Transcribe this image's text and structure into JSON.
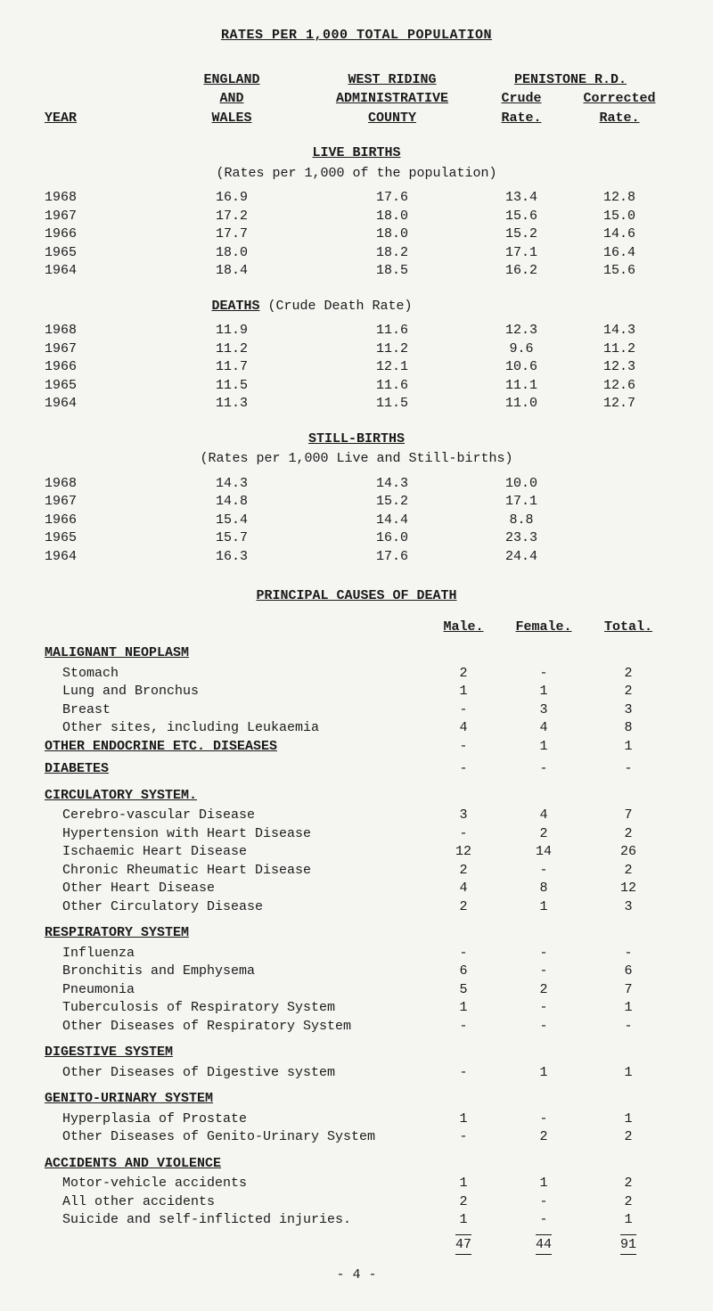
{
  "title": "RATES PER 1,000 TOTAL POPULATION",
  "headers": {
    "year": "YEAR",
    "england": "ENGLAND",
    "and": "AND",
    "wales": "WALES",
    "west": "WEST RIDING",
    "admin": "ADMINISTRATIVE",
    "county": "COUNTY",
    "penistone": "PENISTONE R.D.",
    "crude": "Crude",
    "corrected": "Corrected",
    "rate1": "Rate.",
    "rate2": "Rate."
  },
  "live_births": {
    "title": "LIVE BIRTHS",
    "subtitle": "(Rates per 1,000 of the population)",
    "rows": [
      {
        "y": "1968",
        "a": "16.9",
        "b": "17.6",
        "c": "13.4",
        "d": "12.8"
      },
      {
        "y": "1967",
        "a": "17.2",
        "b": "18.0",
        "c": "15.6",
        "d": "15.0"
      },
      {
        "y": "1966",
        "a": "17.7",
        "b": "18.0",
        "c": "15.2",
        "d": "14.6"
      },
      {
        "y": "1965",
        "a": "18.0",
        "b": "18.2",
        "c": "17.1",
        "d": "16.4"
      },
      {
        "y": "1964",
        "a": "18.4",
        "b": "18.5",
        "c": "16.2",
        "d": "15.6"
      }
    ]
  },
  "deaths": {
    "title_u": "DEATHS",
    "title_after": " (Crude Death Rate)",
    "rows": [
      {
        "y": "1968",
        "a": "11.9",
        "b": "11.6",
        "c": "12.3",
        "d": "14.3"
      },
      {
        "y": "1967",
        "a": "11.2",
        "b": "11.2",
        "c": "9.6",
        "d": "11.2"
      },
      {
        "y": "1966",
        "a": "11.7",
        "b": "12.1",
        "c": "10.6",
        "d": "12.3"
      },
      {
        "y": "1965",
        "a": "11.5",
        "b": "11.6",
        "c": "11.1",
        "d": "12.6"
      },
      {
        "y": "1964",
        "a": "11.3",
        "b": "11.5",
        "c": "11.0",
        "d": "12.7"
      }
    ]
  },
  "stillbirths": {
    "title": "STILL-BIRTHS",
    "subtitle": "(Rates per 1,000 Live and Still-births)",
    "rows": [
      {
        "y": "1968",
        "a": "14.3",
        "b": "14.3",
        "c": "10.0",
        "d": ""
      },
      {
        "y": "1967",
        "a": "14.8",
        "b": "15.2",
        "c": "17.1",
        "d": ""
      },
      {
        "y": "1966",
        "a": "15.4",
        "b": "14.4",
        "c": "8.8",
        "d": ""
      },
      {
        "y": "1965",
        "a": "15.7",
        "b": "16.0",
        "c": "23.3",
        "d": ""
      },
      {
        "y": "1964",
        "a": "16.3",
        "b": "17.6",
        "c": "24.4",
        "d": ""
      }
    ]
  },
  "causes": {
    "title": "PRINCIPAL CAUSES OF DEATH",
    "cols": {
      "male": "Male.",
      "female": "Female.",
      "total": "Total."
    },
    "malignant": {
      "label": "MALIGNANT NEOPLASM",
      "rows": [
        {
          "l": "Stomach",
          "m": "2",
          "f": "-",
          "t": "2"
        },
        {
          "l": "Lung and Bronchus",
          "m": "1",
          "f": "1",
          "t": "2"
        },
        {
          "l": "Breast",
          "m": "-",
          "f": "3",
          "t": "3"
        },
        {
          "l": "Other sites, including Leukaemia",
          "m": "4",
          "f": "4",
          "t": "8"
        }
      ]
    },
    "endocrine": {
      "label": "OTHER ENDOCRINE ETC. DISEASES",
      "m": "-",
      "f": "1",
      "t": "1"
    },
    "diabetes": {
      "label": "DIABETES",
      "m": "-",
      "f": "-",
      "t": "-"
    },
    "circulatory": {
      "label": "CIRCULATORY SYSTEM.",
      "rows": [
        {
          "l": "Cerebro-vascular Disease",
          "m": "3",
          "f": "4",
          "t": "7"
        },
        {
          "l": "Hypertension with Heart Disease",
          "m": "-",
          "f": "2",
          "t": "2"
        },
        {
          "l": "Ischaemic Heart Disease",
          "m": "12",
          "f": "14",
          "t": "26"
        },
        {
          "l": "Chronic Rheumatic Heart Disease",
          "m": "2",
          "f": "-",
          "t": "2"
        },
        {
          "l": "Other Heart Disease",
          "m": "4",
          "f": "8",
          "t": "12"
        },
        {
          "l": "Other Circulatory Disease",
          "m": "2",
          "f": "1",
          "t": "3"
        }
      ]
    },
    "respiratory": {
      "label": "RESPIRATORY SYSTEM",
      "rows": [
        {
          "l": "Influenza",
          "m": "-",
          "f": "-",
          "t": "-"
        },
        {
          "l": "Bronchitis and Emphysema",
          "m": "6",
          "f": "-",
          "t": "6"
        },
        {
          "l": "Pneumonia",
          "m": "5",
          "f": "2",
          "t": "7"
        },
        {
          "l": "Tuberculosis of Respiratory System",
          "m": "1",
          "f": "-",
          "t": "1"
        },
        {
          "l": "Other Diseases of Respiratory System",
          "m": "-",
          "f": "-",
          "t": "-"
        }
      ]
    },
    "digestive": {
      "label": "DIGESTIVE SYSTEM",
      "rows": [
        {
          "l": "Other Diseases of Digestive system",
          "m": "-",
          "f": "1",
          "t": "1"
        }
      ]
    },
    "genito": {
      "label": "GENITO-URINARY SYSTEM",
      "rows": [
        {
          "l": "Hyperplasia of Prostate",
          "m": "1",
          "f": "-",
          "t": "1"
        },
        {
          "l": "Other Diseases of Genito-Urinary System",
          "m": "-",
          "f": "2",
          "t": "2"
        }
      ]
    },
    "accidents": {
      "label": "ACCIDENTS AND VIOLENCE",
      "rows": [
        {
          "l": "Motor-vehicle accidents",
          "m": "1",
          "f": "1",
          "t": "2"
        },
        {
          "l": "All other accidents",
          "m": "2",
          "f": "-",
          "t": "2"
        },
        {
          "l": "Suicide and self-inflicted injuries.",
          "m": "1",
          "f": "-",
          "t": "1"
        }
      ]
    },
    "totals": {
      "m": "47",
      "f": "44",
      "t": "91"
    }
  },
  "footer": "- 4 -"
}
